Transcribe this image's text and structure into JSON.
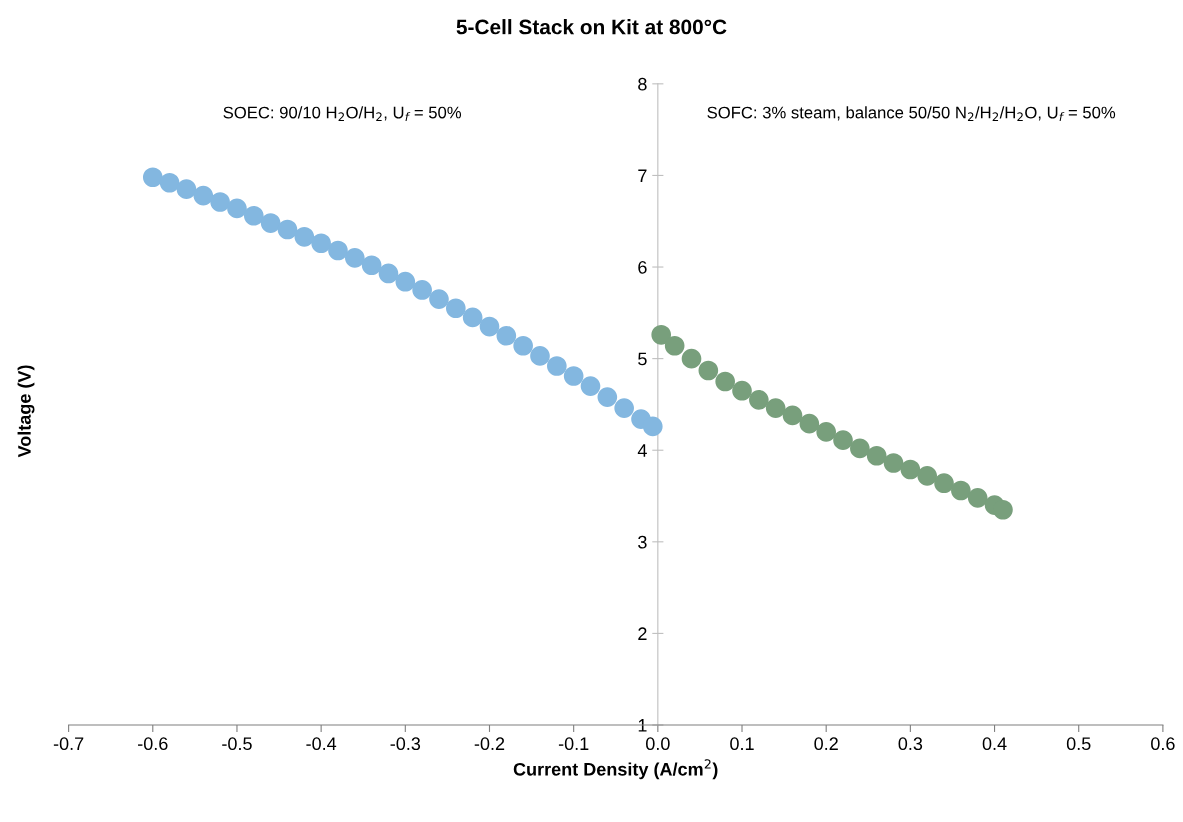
{
  "chart_data": {
    "type": "scatter",
    "title": "5-Cell Stack on Kit at 800°C",
    "xlabel": "Current Density (A/cm$^{2}$)",
    "ylabel": "Voltage (V)",
    "annotations": [
      "SOEC: 90/10 H$_{2}$O/H$_{2}$, U$_{f}$ = 50%",
      "SOFC: 3% steam, balance 50/50 N$_{2}$/H$_{2}$/H$_{2}$O, U$_{f}$ = 50%"
    ],
    "xlim": [
      -0.7,
      0.6
    ],
    "xticks": [
      -0.7,
      -0.6,
      -0.5,
      -0.4,
      -0.3,
      -0.2,
      -0.1,
      {
        "value": 0,
        "label": "0.0"
      },
      0.1,
      0.2,
      0.3,
      0.4,
      0.5,
      0.6
    ],
    "ylim": [
      1,
      8
    ],
    "yticks": [
      1,
      2,
      3,
      4,
      5,
      6,
      7,
      8
    ],
    "grid": false,
    "marker": "circle",
    "series": [
      {
        "color": "#83b7e0",
        "x": [
          -0.6,
          -0.58,
          -0.56,
          -0.54,
          -0.52,
          -0.5,
          -0.48,
          -0.46,
          -0.44,
          -0.42,
          -0.4,
          -0.38,
          -0.36,
          -0.34,
          -0.32,
          -0.3,
          -0.28,
          -0.26,
          -0.24,
          -0.22,
          -0.2,
          -0.18,
          -0.16,
          -0.14,
          -0.12,
          -0.1,
          -0.08,
          -0.06,
          -0.04,
          -0.02,
          -0.006
        ],
        "values": [
          6.98,
          6.92,
          6.85,
          6.78,
          6.71,
          6.64,
          6.56,
          6.48,
          6.41,
          6.33,
          6.26,
          6.18,
          6.1,
          6.02,
          5.93,
          5.84,
          5.75,
          5.65,
          5.55,
          5.45,
          5.35,
          5.25,
          5.14,
          5.03,
          4.92,
          4.81,
          4.7,
          4.58,
          4.46,
          4.34,
          4.26
        ]
      },
      {
        "color": "#789f7c",
        "x": [
          0.004,
          0.02,
          0.04,
          0.06,
          0.08,
          0.1,
          0.12,
          0.14,
          0.16,
          0.18,
          0.2,
          0.22,
          0.24,
          0.26,
          0.28,
          0.3,
          0.32,
          0.34,
          0.36,
          0.38,
          0.4,
          0.41
        ],
        "values": [
          5.26,
          5.14,
          5.0,
          4.87,
          4.75,
          4.65,
          4.55,
          4.46,
          4.38,
          4.29,
          4.2,
          4.11,
          4.02,
          3.94,
          3.86,
          3.79,
          3.72,
          3.64,
          3.56,
          3.48,
          3.4,
          3.35
        ]
      }
    ]
  }
}
